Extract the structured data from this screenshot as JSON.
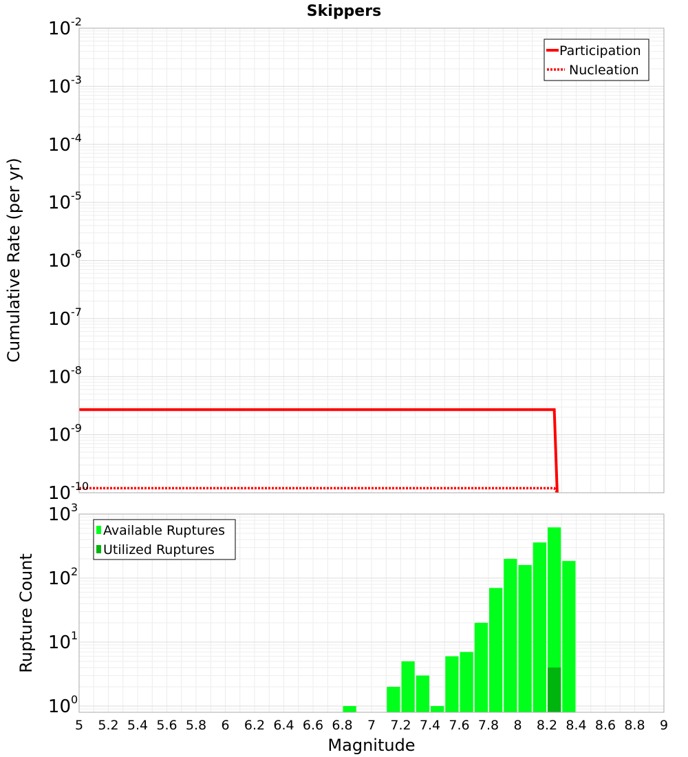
{
  "chart_data": [
    {
      "type": "line",
      "title": "Skippers",
      "ylabel": "Cumulative Rate (per yr)",
      "xlim": [
        5,
        9
      ],
      "ylim": [
        1e-10,
        0.01
      ],
      "yscale": "log",
      "grid": true,
      "legend_position": "top-right",
      "y_ticks": [
        {
          "base": "10",
          "exp": "-2"
        },
        {
          "base": "10",
          "exp": "-3"
        },
        {
          "base": "10",
          "exp": "-4"
        },
        {
          "base": "10",
          "exp": "-5"
        },
        {
          "base": "10",
          "exp": "-6"
        },
        {
          "base": "10",
          "exp": "-7"
        },
        {
          "base": "10",
          "exp": "-8"
        },
        {
          "base": "10",
          "exp": "-9"
        },
        {
          "base": "10",
          "exp": "-10"
        }
      ],
      "series": [
        {
          "name": "Participation",
          "style": "solid",
          "color": "#ff0000",
          "x": [
            5.0,
            8.25,
            8.27
          ],
          "y": [
            2.7e-09,
            2.7e-09,
            1e-10
          ]
        },
        {
          "name": "Nucleation",
          "style": "dotted",
          "color": "#ff0000",
          "x": [
            5.0,
            8.25,
            8.27
          ],
          "y": [
            1.2e-10,
            1.2e-10,
            1e-10
          ]
        }
      ]
    },
    {
      "type": "bar",
      "xlabel": "Magnitude",
      "ylabel": "Rupture Count",
      "xlim": [
        5,
        9
      ],
      "ylim": [
        0.8,
        1000
      ],
      "yscale": "log",
      "grid": true,
      "legend_position": "top-left",
      "x_ticks": [
        "5",
        "5.2",
        "5.4",
        "5.6",
        "5.8",
        "6",
        "6.2",
        "6.4",
        "6.6",
        "6.8",
        "7",
        "7.2",
        "7.4",
        "7.6",
        "7.8",
        "8",
        "8.2",
        "8.4",
        "8.6",
        "8.8",
        "9"
      ],
      "y_ticks": [
        {
          "base": "10",
          "exp": "3"
        },
        {
          "base": "10",
          "exp": "2"
        },
        {
          "base": "10",
          "exp": "1"
        },
        {
          "base": "10",
          "exp": "0"
        }
      ],
      "series": [
        {
          "name": "Available Ruptures",
          "color": "#00ff1a",
          "x": [
            6.85,
            7.15,
            7.25,
            7.35,
            7.45,
            7.55,
            7.65,
            7.75,
            7.85,
            7.95,
            8.05,
            8.15,
            8.25,
            8.35
          ],
          "values": [
            1,
            2,
            5,
            3,
            1,
            6,
            7,
            20,
            70,
            200,
            160,
            360,
            620,
            185
          ]
        },
        {
          "name": "Utilized Ruptures",
          "color": "#00b40e",
          "x": [
            8.25
          ],
          "values": [
            4
          ]
        }
      ]
    }
  ]
}
